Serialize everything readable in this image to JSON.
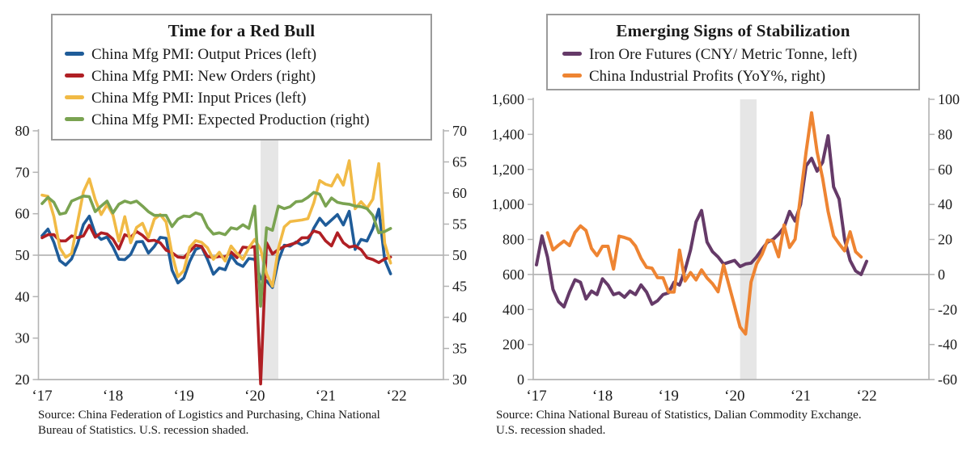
{
  "palette": {
    "axis": "#b3b3b3",
    "reference_line": "#aaaaaa",
    "recession_band": "#e6e6e6",
    "text": "#1a1a1a",
    "legend_border": "#9b9b9b"
  },
  "chart_data": [
    {
      "type": "line",
      "title": "Time for a Red Bull",
      "x_start_year": 2017,
      "x_tick_labels": [
        "‘17",
        "‘18",
        "‘19",
        "‘20",
        "‘21",
        "‘22"
      ],
      "left_axis": {
        "min": 20,
        "max": 80,
        "ticks": [
          {
            "value": 80,
            "label": "80"
          },
          {
            "value": 70,
            "label": "70"
          },
          {
            "value": 60,
            "label": "60"
          },
          {
            "value": 50,
            "label": "50"
          },
          {
            "value": 40,
            "label": "40"
          },
          {
            "value": 30,
            "label": "30"
          },
          {
            "value": 20,
            "label": "20"
          }
        ]
      },
      "right_axis": {
        "min": 30,
        "max": 70,
        "ticks": [
          {
            "value": 70,
            "label": "70"
          },
          {
            "value": 65,
            "label": "65"
          },
          {
            "value": 60,
            "label": "60"
          },
          {
            "value": 55,
            "label": "55"
          },
          {
            "value": 50,
            "label": "50"
          },
          {
            "value": 45,
            "label": "45"
          },
          {
            "value": 40,
            "label": "40"
          },
          {
            "value": 35,
            "label": "35"
          },
          {
            "value": 30,
            "label": "30"
          }
        ]
      },
      "reference_line": {
        "axis": "left",
        "value": 50
      },
      "recession_band": {
        "from": "2020-02",
        "to": "2020-04",
        "note": "U.S. recession shaded"
      },
      "series": [
        {
          "name": "China Mfg PMI: Output Prices (left)",
          "axis": "left",
          "color": "#1f5c99",
          "start_index": 0,
          "values": [
            54.7,
            56.3,
            53.1,
            48.7,
            47.6,
            49.1,
            52.7,
            57.4,
            59.4,
            55.2,
            53.8,
            54.4,
            52.0,
            49.0,
            48.9,
            50.2,
            53.2,
            53.3,
            50.5,
            52.1,
            54.3,
            54.1,
            46.4,
            43.3,
            44.5,
            48.5,
            51.4,
            52.0,
            49.0,
            45.4,
            46.9,
            46.5,
            49.9,
            48.0,
            47.3,
            49.2,
            49.0,
            44.3,
            43.8,
            42.2,
            48.7,
            52.4,
            52.2,
            53.2,
            52.5,
            53.2,
            56.5,
            58.9,
            57.2,
            58.5,
            59.8,
            57.3,
            60.6,
            51.4,
            53.8,
            53.4,
            56.4,
            61.1,
            48.9,
            45.5
          ]
        },
        {
          "name": "China Mfg PMI: New Orders (right)",
          "axis": "right",
          "color": "#b01f24",
          "start_index": 0,
          "values": [
            52.8,
            53.3,
            53.3,
            52.3,
            52.3,
            53.1,
            52.8,
            53.1,
            54.8,
            52.9,
            53.6,
            53.4,
            52.6,
            51.0,
            53.3,
            52.9,
            53.8,
            53.2,
            52.3,
            52.4,
            52.0,
            50.8,
            50.4,
            49.7,
            49.6,
            50.6,
            51.6,
            51.4,
            49.8,
            49.6,
            49.8,
            49.7,
            50.5,
            49.6,
            51.3,
            51.2,
            51.4,
            29.3,
            52.0,
            50.2,
            50.9,
            51.4,
            51.7,
            52.0,
            52.8,
            52.8,
            53.9,
            53.6,
            52.3,
            51.5,
            53.6,
            52.0,
            51.3,
            51.5,
            50.9,
            49.6,
            49.3,
            48.8,
            49.4,
            49.7
          ]
        },
        {
          "name": "China Mfg PMI: Input Prices (left)",
          "axis": "left",
          "color": "#f1ba45",
          "start_index": 0,
          "values": [
            64.5,
            64.2,
            59.3,
            51.8,
            49.5,
            50.4,
            57.9,
            65.3,
            68.4,
            63.4,
            59.8,
            62.2,
            59.7,
            53.4,
            59.3,
            53.0,
            56.7,
            57.7,
            54.3,
            58.7,
            59.8,
            58.0,
            50.3,
            44.8,
            46.3,
            51.9,
            53.5,
            53.1,
            51.8,
            49.0,
            50.7,
            48.6,
            52.2,
            50.4,
            49.0,
            51.8,
            53.8,
            51.4,
            45.5,
            42.5,
            51.6,
            56.8,
            58.1,
            58.3,
            58.5,
            58.8,
            62.6,
            68.0,
            67.1,
            66.7,
            69.4,
            66.9,
            72.8,
            61.2,
            62.9,
            61.3,
            63.5,
            72.1,
            52.9,
            48.1
          ]
        },
        {
          "name": "China Mfg PMI: Expected Production (right)",
          "axis": "right",
          "color": "#7aa351",
          "start_index": 0,
          "values": [
            58.3,
            59.3,
            58.5,
            56.6,
            56.8,
            58.7,
            59.1,
            59.5,
            59.4,
            57.0,
            57.9,
            58.7,
            56.8,
            58.2,
            58.7,
            58.4,
            58.7,
            57.9,
            57.0,
            56.4,
            56.4,
            56.4,
            54.6,
            55.8,
            56.3,
            56.2,
            56.8,
            56.5,
            54.5,
            53.4,
            53.6,
            53.3,
            54.4,
            54.2,
            54.9,
            54.3,
            57.9,
            41.8,
            54.4,
            54.0,
            57.9,
            57.5,
            57.8,
            58.6,
            58.7,
            59.3,
            60.1,
            59.8,
            57.9,
            59.2,
            58.5,
            58.3,
            58.2,
            57.9,
            57.8,
            57.5,
            56.4,
            53.6,
            53.8,
            54.3
          ]
        }
      ],
      "source_lines": [
        "Source: China Federation of Logistics and Purchasing, China National",
        "Bureau of Statistics. U.S. recession shaded."
      ]
    },
    {
      "type": "line",
      "title": "Emerging Signs of Stabilization",
      "x_start_year": 2017,
      "x_tick_labels": [
        "‘17",
        "‘18",
        "‘19",
        "‘20",
        "‘21",
        "‘22"
      ],
      "left_axis": {
        "min": 0,
        "max": 1600,
        "ticks": [
          {
            "value": 1600,
            "label": "1,600"
          },
          {
            "value": 1400,
            "label": "1,400"
          },
          {
            "value": 1200,
            "label": "1,200"
          },
          {
            "value": 1000,
            "label": "1,000"
          },
          {
            "value": 800,
            "label": "800"
          },
          {
            "value": 600,
            "label": "600"
          },
          {
            "value": 400,
            "label": "400"
          },
          {
            "value": 200,
            "label": "200"
          },
          {
            "value": 0,
            "label": "0"
          }
        ]
      },
      "right_axis": {
        "min": -60,
        "max": 100,
        "ticks": [
          {
            "value": 100,
            "label": "100"
          },
          {
            "value": 80,
            "label": "80"
          },
          {
            "value": 60,
            "label": "60"
          },
          {
            "value": 40,
            "label": "40"
          },
          {
            "value": 20,
            "label": "20"
          },
          {
            "value": 0,
            "label": "0"
          },
          {
            "value": -20,
            "label": "-20"
          },
          {
            "value": -40,
            "label": "-40"
          },
          {
            "value": -60,
            "label": "-60"
          }
        ]
      },
      "reference_line": {
        "axis": "right",
        "value": 0
      },
      "recession_band": {
        "from": "2020-02",
        "to": "2020-04",
        "note": "U.S. recession shaded"
      },
      "series": [
        {
          "name": "Iron Ore Futures (CNY/ Metric Tonne, left)",
          "axis": "left",
          "color": "#653a68",
          "start_index": 0,
          "values": [
            655,
            820,
            700,
            515,
            445,
            415,
            500,
            570,
            555,
            460,
            505,
            485,
            575,
            540,
            485,
            495,
            470,
            505,
            485,
            540,
            500,
            430,
            450,
            485,
            495,
            555,
            540,
            625,
            740,
            900,
            965,
            785,
            730,
            700,
            660,
            670,
            680,
            645,
            660,
            665,
            700,
            745,
            785,
            800,
            830,
            870,
            960,
            905,
            1000,
            1220,
            1263,
            1190,
            1240,
            1392,
            1100,
            1030,
            800,
            680,
            620,
            600,
            675
          ]
        },
        {
          "name": "China Industrial Profits (YoY%, right)",
          "axis": "right",
          "color": "#ee8432",
          "start_index": 2,
          "values": [
            23.8,
            14.0,
            16.7,
            19.1,
            16.5,
            24.0,
            27.7,
            25.1,
            14.9,
            10.8,
            16.1,
            16.1,
            3.1,
            21.9,
            21.1,
            20.0,
            16.2,
            9.2,
            4.1,
            3.6,
            -1.8,
            -1.9,
            -10.0,
            -10.0,
            13.9,
            -3.7,
            1.1,
            -3.1,
            2.6,
            -2.0,
            -5.3,
            -9.9,
            5.4,
            -6.3,
            -18.0,
            -30.0,
            -34.0,
            -4.3,
            6.0,
            11.5,
            19.6,
            19.1,
            10.1,
            28.2,
            15.5,
            20.1,
            45.0,
            70.0,
            92.3,
            70.0,
            55.0,
            36.0,
            22.0,
            17.5,
            13.5,
            24.4,
            13.0,
            10.0
          ]
        }
      ],
      "source_lines": [
        "Source: China National Bureau of Statistics, Dalian Commodity Exchange.",
        "U.S. recession shaded."
      ]
    }
  ]
}
